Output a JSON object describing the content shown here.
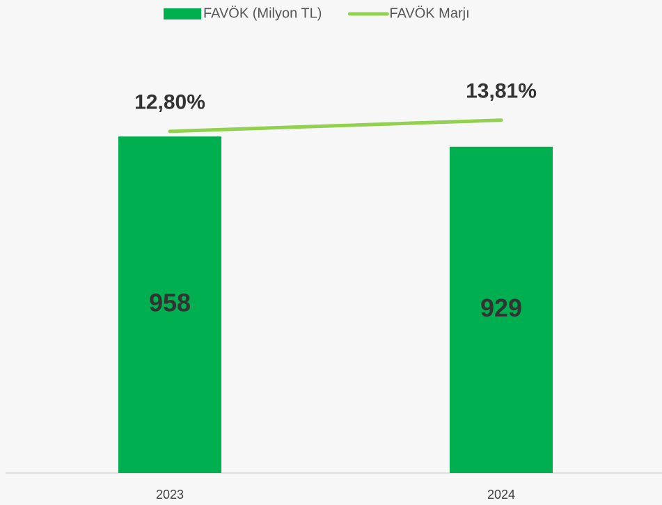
{
  "chart_data": {
    "type": "bar_line",
    "categories": [
      "2023",
      "2024"
    ],
    "series": [
      {
        "name": "FAVÖK (Milyon TL)",
        "type": "bar",
        "color": "#00b050",
        "values": [
          958,
          929
        ]
      },
      {
        "name": "FAVÖK Marjı",
        "type": "line",
        "axis": "y2",
        "color": "#92d050",
        "values": [
          12.8,
          13.81
        ],
        "value_labels": [
          "12,80%",
          "13,81%"
        ]
      }
    ],
    "ylim": [
      0,
      1200
    ],
    "y2lim": [
      -18,
      20
    ],
    "legend": "top"
  }
}
